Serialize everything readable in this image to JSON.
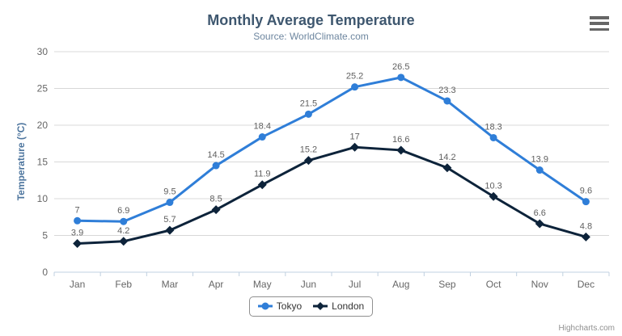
{
  "chart": {
    "title": "Monthly Average Temperature",
    "subtitle": "Source: WorldClimate.com",
    "credits": "Highcharts.com"
  },
  "chart_data": {
    "type": "line",
    "title": "Monthly Average Temperature",
    "subtitle": "Source: WorldClimate.com",
    "categories": [
      "Jan",
      "Feb",
      "Mar",
      "Apr",
      "May",
      "Jun",
      "Jul",
      "Aug",
      "Sep",
      "Oct",
      "Nov",
      "Dec"
    ],
    "series": [
      {
        "name": "Tokyo",
        "color": "#2f7ed8",
        "marker": "circle",
        "values": [
          7,
          6.9,
          9.5,
          14.5,
          18.4,
          21.5,
          25.2,
          26.5,
          23.3,
          18.3,
          13.9,
          9.6
        ]
      },
      {
        "name": "London",
        "color": "#0d233a",
        "marker": "diamond",
        "values": [
          3.9,
          4.2,
          5.7,
          8.5,
          11.9,
          15.2,
          17,
          16.6,
          14.2,
          10.3,
          6.6,
          4.8
        ]
      }
    ],
    "xlabel": "",
    "ylabel": "Temperature (°C)",
    "ylim": [
      0,
      30
    ],
    "ytick_step": 5,
    "yticks": [
      0,
      5,
      10,
      15,
      20,
      25,
      30
    ],
    "grid": true,
    "data_labels": true,
    "legend_position": "bottom-center"
  },
  "icons": {
    "menu": "hamburger-menu-icon"
  },
  "colors": {
    "title": "#3E576F",
    "subtitle": "#6D869F",
    "axis_title": "#4d759e",
    "axis_labels": "#666666",
    "data_labels": "#606060",
    "gridline": "#D8D8D8",
    "axis_line": "#C0D0E0",
    "legend_border": "#909090",
    "legend_text": "#333333",
    "credits": "#909090",
    "menu_icon": "#666666",
    "background": "#ffffff"
  }
}
